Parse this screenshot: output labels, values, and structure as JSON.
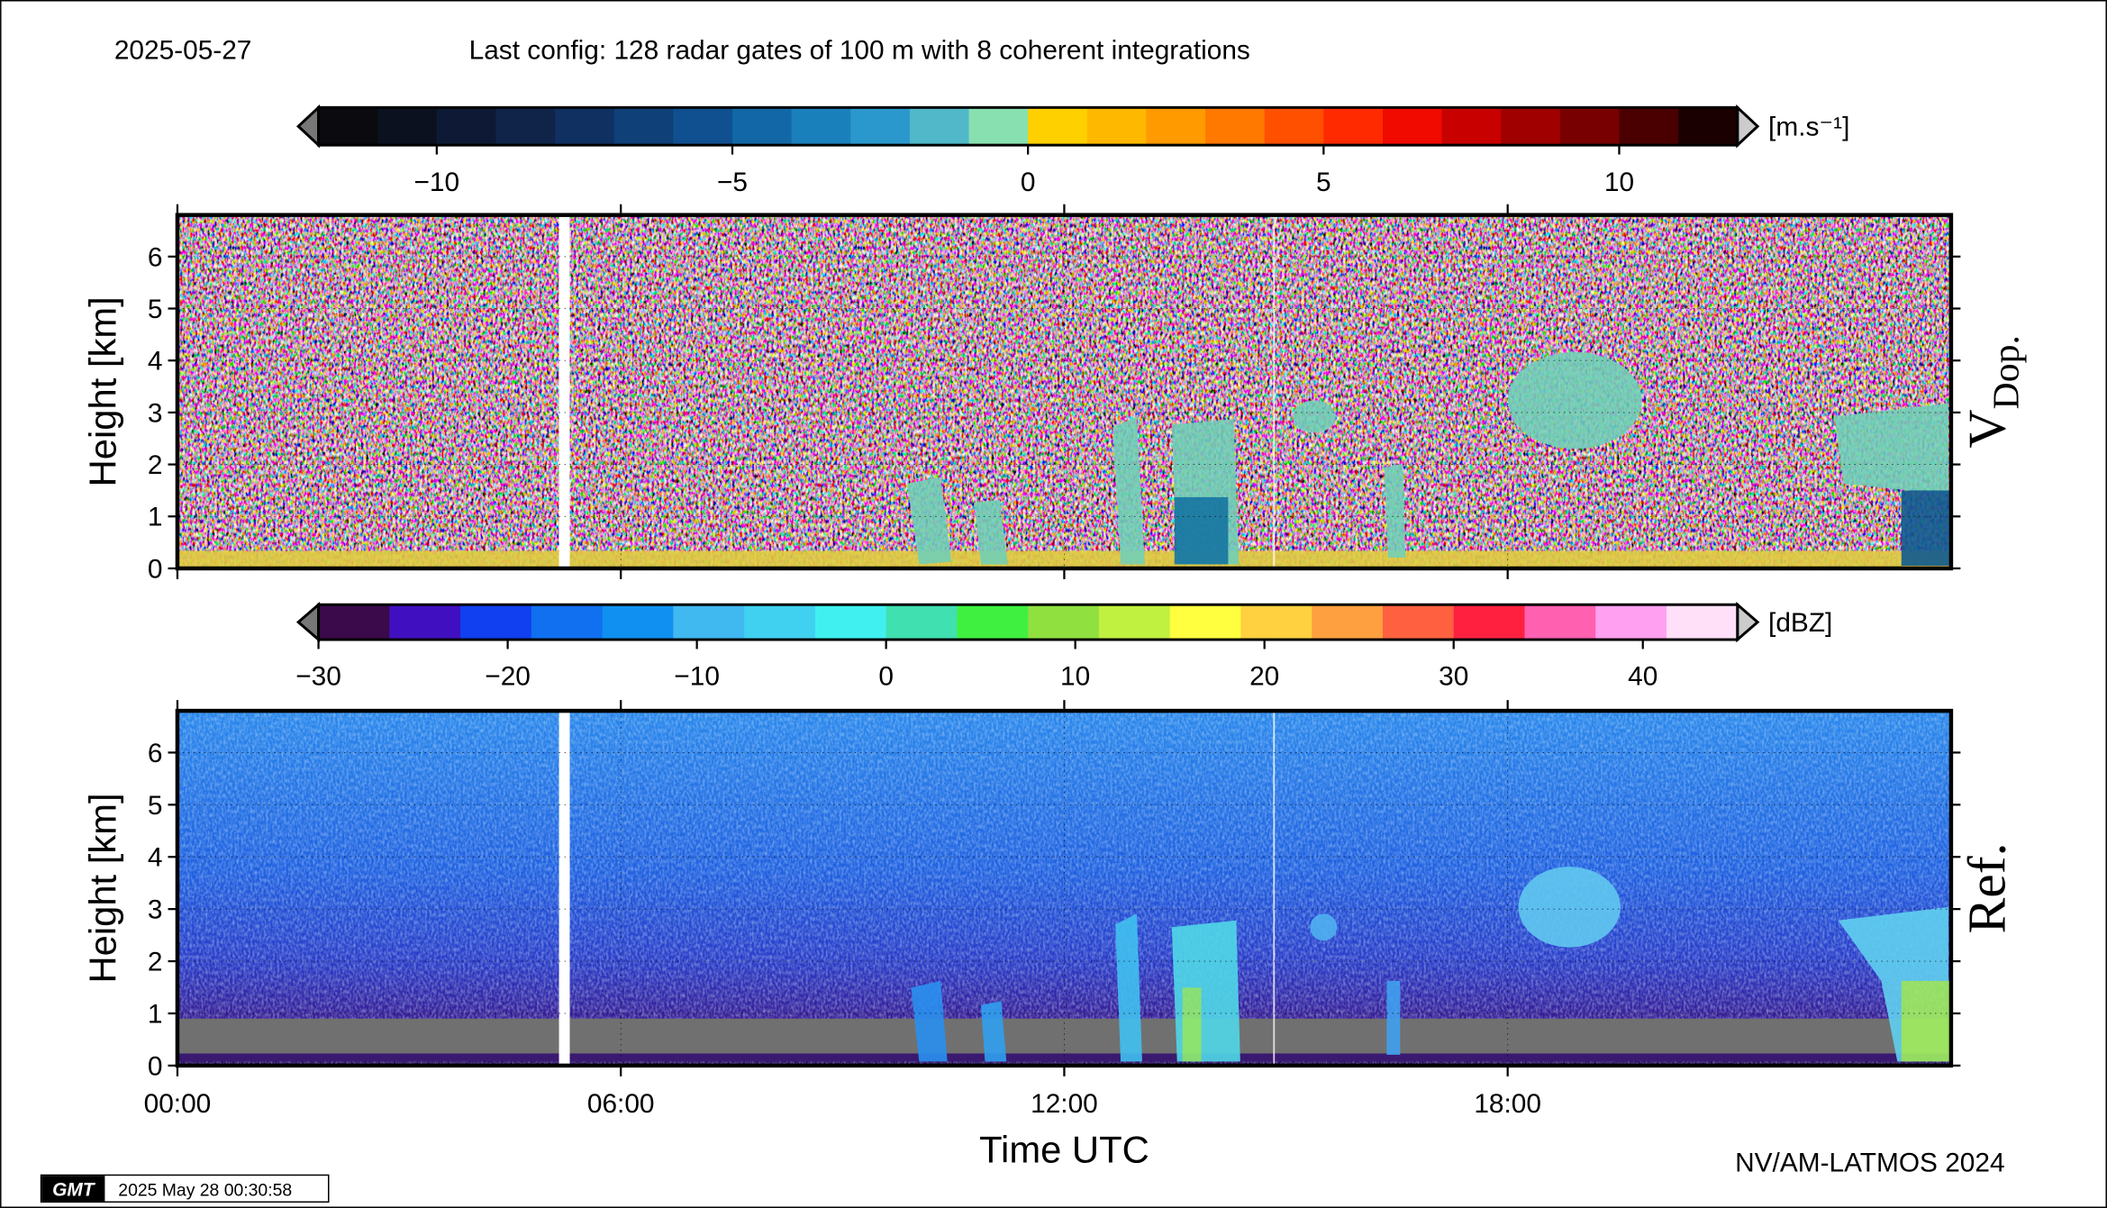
{
  "header": {
    "date": "2025-05-27",
    "config": "Last config: 128 radar gates of 100 m with 8 coherent integrations"
  },
  "chart_data": [
    {
      "type": "colorbar",
      "unit": "[m.s⁻¹]",
      "xlim": [
        -12,
        12
      ],
      "xticks": [
        {
          "value": -10,
          "label": "−10"
        },
        {
          "value": -5,
          "label": "−5"
        },
        0,
        5,
        10
      ],
      "colors": [
        "#0a0a0f",
        "#0c1120",
        "#0e1a35",
        "#0f2448",
        "#0f3060",
        "#0f4078",
        "#105090",
        "#1268a6",
        "#1a80bc",
        "#2a98cc",
        "#50b8c8",
        "#88e0b0",
        "#ffd000",
        "#ffb800",
        "#ff9a00",
        "#ff7800",
        "#ff5000",
        "#ff2a00",
        "#f00a00",
        "#c80000",
        "#a00000",
        "#780000",
        "#4a0000",
        "#1a0000"
      ]
    },
    {
      "type": "heatmap",
      "ylabel": "Height [km]",
      "panel_label": "V",
      "panel_label_sub": "Dop.",
      "ylim": [
        0,
        6.8
      ],
      "yticks": [
        0,
        1,
        2,
        3,
        4,
        5,
        6
      ],
      "grid": true
    },
    {
      "type": "colorbar",
      "unit": "[dBZ]",
      "xlim": [
        -30,
        45
      ],
      "xticks": [
        {
          "value": -30,
          "label": "−30"
        },
        {
          "value": -20,
          "label": "−20"
        },
        {
          "value": -10,
          "label": "−10"
        },
        0,
        10,
        20,
        30,
        40
      ],
      "colors": [
        "#3a0a4a",
        "#4010c0",
        "#1040f0",
        "#1070f0",
        "#1090f0",
        "#40b8f0",
        "#40d0f0",
        "#40f0f0",
        "#40e0b0",
        "#40f040",
        "#90e040",
        "#c0f040",
        "#ffff40",
        "#ffd040",
        "#ffa040",
        "#ff6040",
        "#ff2040",
        "#ff60b0",
        "#ffa0f0",
        "#ffe0f8"
      ]
    },
    {
      "type": "heatmap",
      "ylabel": "Height [km]",
      "panel_label": "Ref.",
      "xlabel": "Time UTC",
      "ylim": [
        0,
        6.8
      ],
      "yticks": [
        0,
        1,
        2,
        3,
        4,
        5,
        6
      ],
      "grid": true,
      "xlim": [
        0,
        24
      ],
      "xticks": [
        {
          "value": 0,
          "label": "00:00"
        },
        {
          "value": 6,
          "label": "06:00"
        },
        {
          "value": 12,
          "label": "12:00"
        },
        {
          "value": 18,
          "label": "18:00"
        }
      ]
    }
  ],
  "footer": {
    "credit": "NV/AM-LATMOS 2024",
    "logo": "GMT",
    "timestamp": "2025 May 28 00:30:58"
  }
}
